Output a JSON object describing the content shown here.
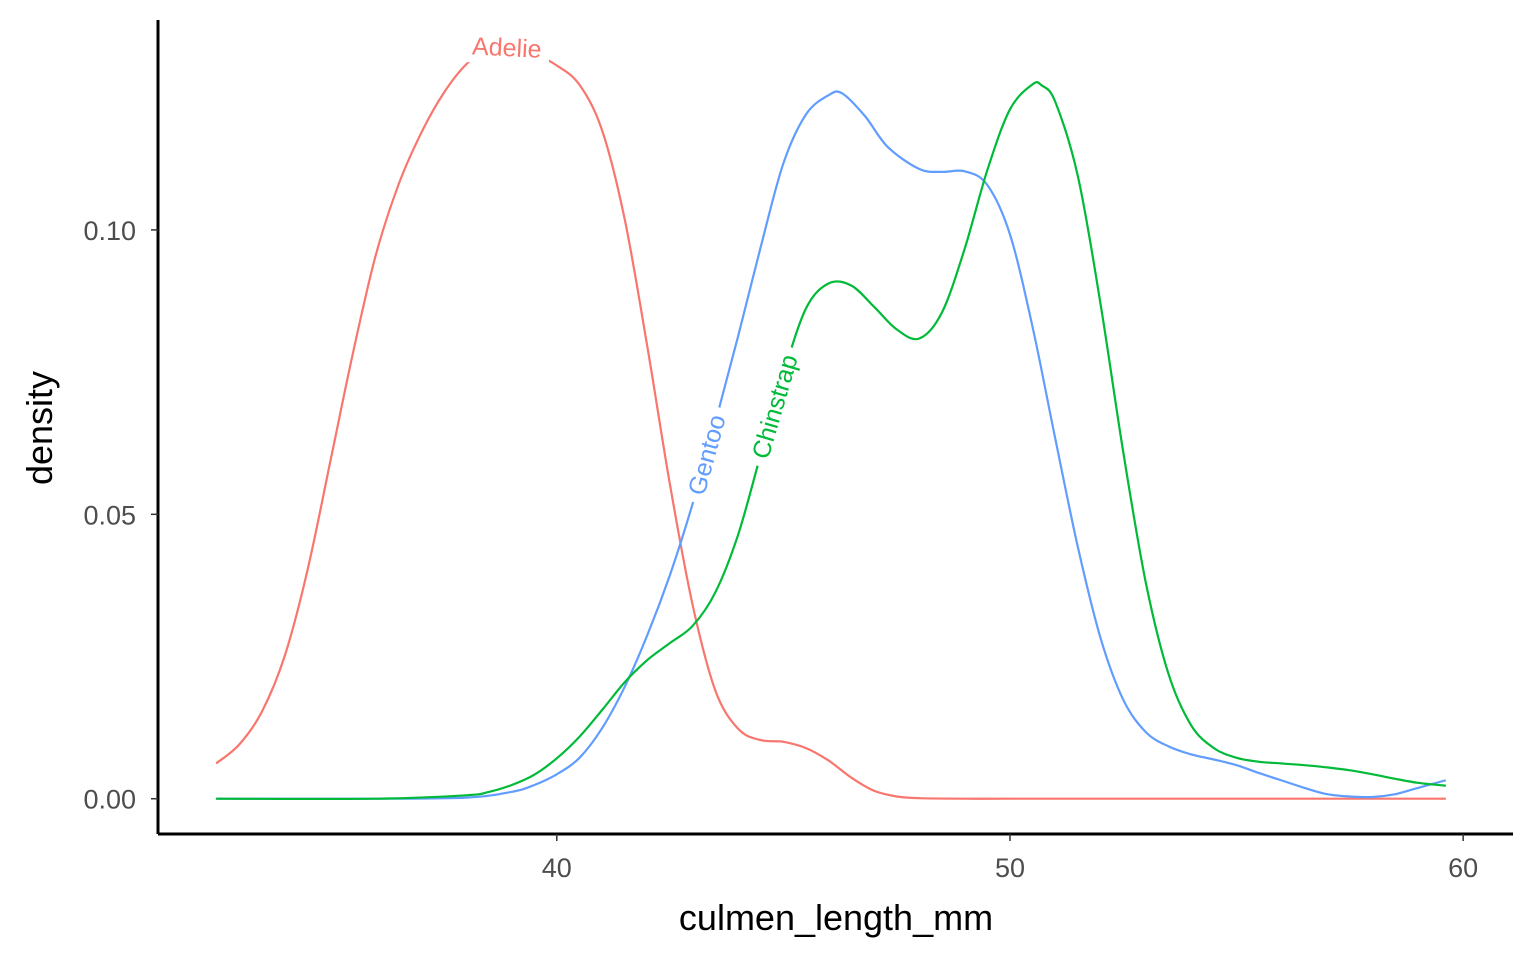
{
  "chart_data": {
    "type": "line",
    "title": "",
    "xlabel": "culmen_length_mm",
    "ylabel": "density",
    "xlim": [
      31.2,
      61.1
    ],
    "ylim": [
      -0.0062,
      0.1369
    ],
    "x_ticks": [
      40,
      50,
      60
    ],
    "x_tick_labels": [
      "40",
      "50",
      "60"
    ],
    "y_ticks": [
      0.0,
      0.05,
      0.1
    ],
    "y_tick_labels": [
      "0.00",
      "0.05",
      "0.10"
    ],
    "grid": false,
    "legend": "none (direct labels on curves)",
    "series": [
      {
        "name": "Adelie",
        "color": "#F8766D",
        "label_x": 38.9,
        "x": [
          32.5,
          33.0,
          33.5,
          34.0,
          34.5,
          35.0,
          35.5,
          36.0,
          36.5,
          37.0,
          37.5,
          38.0,
          38.5,
          39.0,
          39.5,
          40.0,
          40.5,
          41.0,
          41.5,
          42.0,
          42.5,
          43.0,
          43.5,
          44.0,
          44.5,
          45.0,
          45.5,
          46.0,
          46.5,
          47.0,
          47.5,
          48.0,
          49.0,
          50.0,
          52.0,
          55.0,
          59.6
        ],
        "y": [
          0.0063,
          0.0096,
          0.0154,
          0.0252,
          0.0402,
          0.0592,
          0.0783,
          0.0954,
          0.1078,
          0.1169,
          0.124,
          0.1291,
          0.1319,
          0.1322,
          0.131,
          0.1289,
          0.1255,
          0.1175,
          0.1018,
          0.0794,
          0.0551,
          0.034,
          0.019,
          0.0123,
          0.0103,
          0.01,
          0.0089,
          0.0067,
          0.0037,
          0.0014,
          0.0004,
          0.0001,
          0.0,
          0.0,
          0.0,
          0.0,
          0.0
        ]
      },
      {
        "name": "Gentoo",
        "color": "#619CFF",
        "label_x": 43.3,
        "x": [
          32.5,
          36.0,
          38.0,
          39.0,
          39.5,
          40.0,
          40.5,
          41.0,
          41.5,
          42.0,
          42.5,
          43.0,
          43.5,
          44.0,
          44.5,
          45.0,
          45.5,
          46.0,
          46.3,
          46.8,
          47.3,
          48.0,
          48.5,
          49.0,
          49.5,
          50.0,
          50.5,
          51.0,
          51.5,
          52.0,
          52.5,
          53.0,
          53.5,
          54.0,
          54.5,
          55.0,
          55.5,
          56.0,
          56.5,
          57.0,
          57.5,
          58.0,
          58.5,
          59.0,
          59.6
        ],
        "y": [
          0.0,
          0.0,
          0.0002,
          0.0012,
          0.0024,
          0.0043,
          0.0072,
          0.0124,
          0.0197,
          0.0288,
          0.0394,
          0.0519,
          0.0662,
          0.0813,
          0.097,
          0.1117,
          0.1203,
          0.1237,
          0.124,
          0.12,
          0.1146,
          0.1107,
          0.1102,
          0.1103,
          0.1079,
          0.0992,
          0.0829,
          0.0633,
          0.0442,
          0.0282,
          0.0174,
          0.0117,
          0.0092,
          0.0078,
          0.0069,
          0.0059,
          0.0045,
          0.0032,
          0.0019,
          0.0008,
          0.0004,
          0.0003,
          0.0008,
          0.0019,
          0.0032
        ]
      },
      {
        "name": "Chinstrap",
        "color": "#00BA38",
        "label_x": 44.8,
        "x": [
          32.5,
          36.0,
          38.0,
          38.5,
          39.0,
          39.5,
          40.0,
          40.5,
          41.0,
          41.5,
          42.0,
          42.5,
          43.0,
          43.5,
          44.0,
          44.5,
          45.0,
          45.5,
          46.0,
          46.5,
          47.0,
          47.5,
          48.0,
          48.5,
          49.0,
          49.5,
          50.0,
          50.5,
          50.7,
          51.0,
          51.5,
          52.0,
          52.5,
          53.0,
          53.5,
          54.0,
          54.5,
          55.0,
          55.5,
          56.0,
          56.5,
          57.0,
          57.5,
          58.0,
          58.5,
          59.0,
          59.6
        ],
        "y": [
          0.0,
          0.0,
          0.0006,
          0.0012,
          0.0024,
          0.0042,
          0.0071,
          0.0109,
          0.0156,
          0.0205,
          0.0244,
          0.0274,
          0.0304,
          0.0363,
          0.0464,
          0.0605,
          0.0746,
          0.0862,
          0.0906,
          0.0902,
          0.0865,
          0.0825,
          0.0809,
          0.0855,
          0.0967,
          0.1105,
          0.1212,
          0.1256,
          0.1254,
          0.1225,
          0.1094,
          0.0869,
          0.0609,
          0.0379,
          0.0219,
          0.0129,
          0.0089,
          0.0072,
          0.0065,
          0.0062,
          0.0059,
          0.0055,
          0.005,
          0.0043,
          0.0035,
          0.0028,
          0.0023
        ]
      }
    ]
  }
}
